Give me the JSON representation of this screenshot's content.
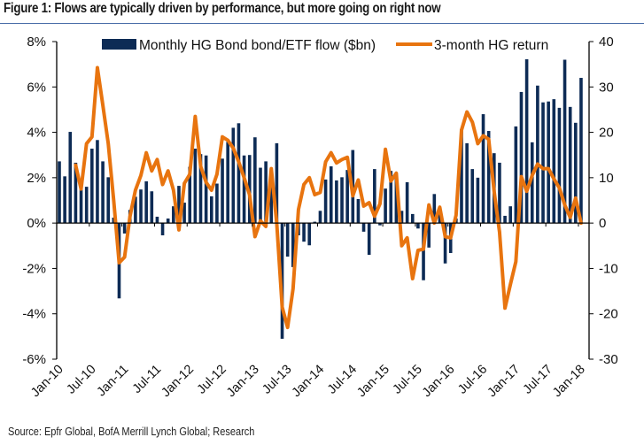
{
  "figure": {
    "title": "Figure 1: Flows are typically driven by performance, but more going on right now",
    "source": "Source: Epfr Global, BofA Merrill Lynch Global; Research"
  },
  "colors": {
    "bars": "#0d2b55",
    "line": "#e8740f",
    "axis": "#000000",
    "title_rule": "#4a6ea8"
  },
  "chart_data": {
    "type": "bar+line",
    "title": "Figure 1: Flows are typically driven by performance, but more going on right now",
    "xlabel": "",
    "x_tick_labels": [
      "Jan-10",
      "Jul-10",
      "Jan-11",
      "Jul-11",
      "Jan-12",
      "Jul-12",
      "Jan-13",
      "Jul-13",
      "Jan-14",
      "Jul-14",
      "Jan-15",
      "Jul-15",
      "Jan-16",
      "Jul-16",
      "Jan-17",
      "Jul-17",
      "Jan-18"
    ],
    "x_tick_every_months": 6,
    "x_start": "Jan-10",
    "x_end": "Jan-18",
    "left_axis": {
      "label": "",
      "ylim": [
        -6,
        8
      ],
      "ticks": [
        8,
        6,
        4,
        2,
        0,
        -2,
        -4,
        -6
      ],
      "tick_labels": [
        "8%",
        "6%",
        "4%",
        "2%",
        "0%",
        "-2%",
        "-4%",
        "-6%"
      ]
    },
    "right_axis": {
      "label": "",
      "ylim": [
        -30,
        40
      ],
      "ticks": [
        40,
        30,
        20,
        10,
        0,
        -10,
        -20,
        -30
      ],
      "tick_labels": [
        "40",
        "30",
        "20",
        "10",
        "0",
        "-10",
        "-20",
        "-30"
      ]
    },
    "legend": {
      "placement": "top",
      "entries": [
        {
          "name": "Monthly HG Bond bond/ETF flow ($bn)",
          "type": "bar"
        },
        {
          "name": "3-month HG return",
          "type": "line"
        }
      ]
    },
    "series": [
      {
        "name": "Monthly HG Bond bond/ETF flow ($bn)",
        "type": "bar",
        "axis": "right",
        "start_index": 0,
        "values": [
          13.6,
          10.3,
          20.1,
          13.3,
          7.6,
          8.0,
          16.4,
          18.3,
          13.6,
          10.1,
          1.2,
          -16.6,
          -2.3,
          2.9,
          5.8,
          7.4,
          9.2,
          7.0,
          1.4,
          -2.7,
          1.0,
          3.7,
          8.2,
          4.5,
          12.4,
          16.4,
          15.2,
          14.9,
          5.9,
          8.7,
          14.2,
          17.9,
          21.0,
          22.0,
          14.9,
          15.0,
          18.9,
          12.2,
          13.6,
          9.0,
          17.6,
          -25.5,
          -7.4,
          -9.7,
          -2.7,
          -4.1,
          -4.9,
          0.3,
          2.7,
          9.6,
          12.5,
          9.4,
          10.1,
          11.7,
          16.1,
          5.3,
          -1.9,
          -7.0,
          11.9,
          -0.5,
          7.6,
          11.5,
          10.8,
          2.7,
          9.0,
          2.0,
          -1.2,
          -12.6,
          -5.4,
          6.4,
          2.0,
          -8.9,
          -6.6,
          1.0,
          20.7,
          17.6,
          11.9,
          10.0,
          24.0,
          20.3,
          15.4,
          13.3,
          1.6,
          3.7,
          21.3,
          28.9,
          36.1,
          17.8,
          30.3,
          26.6,
          26.8,
          27.3,
          25.4,
          36.0,
          25.6,
          22.1,
          32.0
        ]
      },
      {
        "name": "3-month HG return",
        "type": "line",
        "axis": "left",
        "unit": "%",
        "start_index": 3,
        "values": [
          2.55,
          1.5,
          3.5,
          3.8,
          6.85,
          5.2,
          3.5,
          1.0,
          -1.75,
          -1.5,
          0.3,
          1.45,
          2.1,
          3.1,
          2.3,
          2.8,
          1.7,
          2.3,
          1.45,
          -0.3,
          1.75,
          2.15,
          4.7,
          2.5,
          1.8,
          1.45,
          2.15,
          3.8,
          3.65,
          3.3,
          2.7,
          2.0,
          1.25,
          -0.6,
          0.1,
          -0.15,
          2.4,
          0.0,
          -3.7,
          -4.6,
          -2.9,
          0.6,
          1.7,
          2.0,
          1.25,
          1.35,
          2.7,
          3.1,
          2.65,
          2.8,
          2.9,
          1.2,
          1.9,
          0.75,
          0.9,
          0.3,
          0.85,
          3.25,
          1.85,
          2.2,
          -1.0,
          -0.65,
          -2.45,
          -1.2,
          -1.15,
          0.8,
          0.0,
          0.7,
          -0.6,
          -0.65,
          0.35,
          4.1,
          4.9,
          4.45,
          3.5,
          3.85,
          3.7,
          1.4,
          -0.4,
          -3.75,
          -2.7,
          -1.7,
          2.05,
          1.4,
          2.1,
          2.6,
          2.4,
          2.4,
          1.95,
          1.55,
          0.8,
          0.25,
          1.1,
          0.0
        ]
      }
    ],
    "grid": false
  }
}
